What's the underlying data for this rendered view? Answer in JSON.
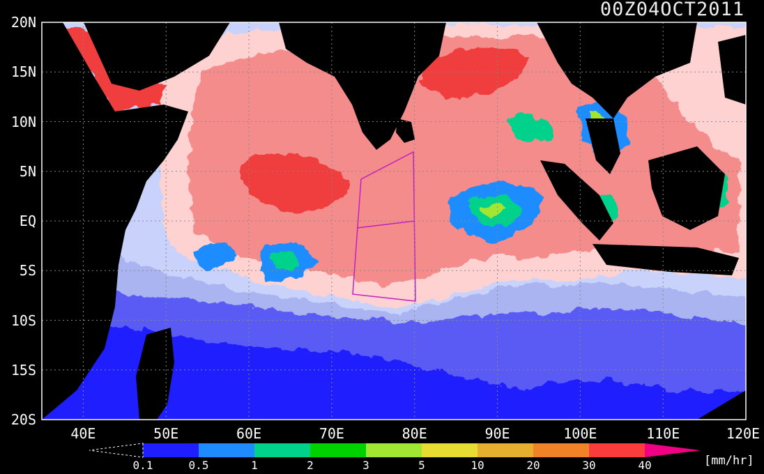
{
  "title": "00Z04OCT2011",
  "lat_labels": [
    "20N",
    "15N",
    "10N",
    "5N",
    "EQ",
    "5S",
    "10S",
    "15S",
    "20S"
  ],
  "lon_labels": [
    "40E",
    "50E",
    "60E",
    "70E",
    "80E",
    "90E",
    "100E",
    "110E",
    "120E"
  ],
  "colorbar": {
    "ticks": [
      "0.1",
      "0.5",
      "1",
      "2",
      "3",
      "5",
      "10",
      "20",
      "30",
      "40"
    ],
    "colors": [
      "#1e1eff",
      "#1e8cff",
      "#00d28c",
      "#00d200",
      "#a0e632",
      "#e6dc32",
      "#e6af2d",
      "#f08228",
      "#fa3c3c",
      "#f00082"
    ],
    "unit": "[mm/hr]"
  },
  "map": {
    "lon_range": [
      35,
      120
    ],
    "lat_range": [
      -20,
      20
    ],
    "background": "#000000",
    "land_color": "#000000",
    "ocean_colors": {
      "dark_blue": "#1e1eff",
      "mid_blue": "#5a5af5",
      "light_blue": "#aab4f0",
      "pale_blue": "#c8d2fa",
      "pink": "#ffd2d2",
      "salmon": "#f58c8c",
      "red": "#f03c3c"
    }
  }
}
